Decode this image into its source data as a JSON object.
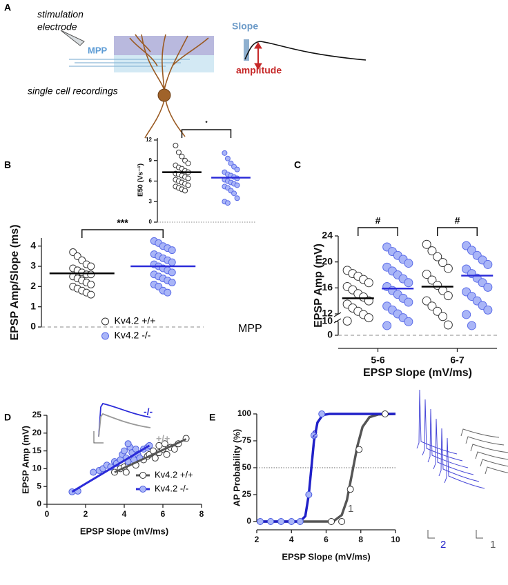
{
  "panels": [
    "A",
    "B",
    "C",
    "D",
    "E"
  ],
  "diagram": {
    "electrode": [
      "stimulation",
      "electrode"
    ],
    "pathway": "MPP",
    "recording": "single cell recordings",
    "slope": "Slope",
    "amplitude": "amplitude"
  },
  "chart_data": [
    {
      "type": "dot",
      "categories": [
        null
      ],
      "ylabel": "E50 (Vs⁻¹)",
      "ylim": [
        0,
        12.3
      ],
      "yticks": [
        0,
        3,
        6,
        9,
        12
      ],
      "zero_line": "dotted",
      "significance": [
        "*"
      ],
      "series": [
        {
          "color": "#ffffff",
          "edge": "#333333",
          "mean_color": "#000000",
          "values": [
            [
              11.2,
              10.2,
              9.6,
              9.0,
              8.6,
              8.3,
              8.0,
              7.8,
              7.5,
              7.3,
              7.1,
              7.0,
              6.8,
              6.6,
              6.4,
              6.2,
              6.0,
              5.8,
              5.6,
              5.4,
              5.2,
              5.0,
              4.8,
              4.6
            ]
          ],
          "means": [
            7.3
          ]
        },
        {
          "color": "#a9b5f7",
          "edge": "#5a6be8",
          "mean_color": "#2b2bd9",
          "values": [
            [
              10.1,
              9.3,
              8.6,
              8.1,
              7.7,
              7.3,
              7.0,
              6.8,
              6.6,
              6.4,
              6.2,
              6.0,
              5.8,
              5.6,
              5.4,
              5.2,
              5.0,
              4.6,
              4.2,
              3.5,
              3.0,
              2.8
            ]
          ],
          "means": [
            6.5
          ]
        }
      ]
    },
    {
      "type": "dot",
      "categories": [
        null
      ],
      "ylabel": "EPSP Amp/Slope (ms)",
      "ylim": [
        0,
        4.4
      ],
      "yticks": [
        0,
        1,
        2,
        3,
        4
      ],
      "zero_line": "dashed",
      "significance": [
        "***"
      ],
      "legend": "lower center",
      "annotation": "MPP",
      "series": [
        {
          "name": "Kv4.2 +/+",
          "color": "#ffffff",
          "edge": "#333333",
          "mean_color": "#000000",
          "values": [
            [
              3.7,
              3.5,
              3.3,
              3.1,
              3.0,
              2.9,
              2.8,
              2.7,
              2.6,
              2.6,
              2.5,
              2.4,
              2.3,
              2.2,
              2.1,
              2.0,
              1.9,
              1.8,
              1.7,
              1.6
            ]
          ],
          "means": [
            2.65
          ]
        },
        {
          "name": "Kv4.2 -/-",
          "color": "#a9b5f7",
          "edge": "#5a6be8",
          "mean_color": "#2b2bd9",
          "values": [
            [
              4.25,
              4.15,
              4.0,
              3.9,
              3.8,
              3.6,
              3.5,
              3.4,
              3.3,
              3.2,
              3.1,
              3.0,
              2.9,
              2.8,
              2.7,
              2.6,
              2.5,
              2.4,
              2.3,
              2.2,
              2.1,
              2.0,
              1.8,
              1.7
            ]
          ],
          "means": [
            3.0
          ]
        }
      ]
    },
    {
      "type": "dot",
      "categories": [
        "5-6",
        "6-7"
      ],
      "xlabel": "EPSP Slope (mV/ms)",
      "ylabel": "EPSP Amp (mV)",
      "ylim": [
        0,
        24
      ],
      "ybreak": [
        10,
        12
      ],
      "yticks": [
        0,
        10,
        12,
        16,
        20,
        24
      ],
      "zero_line": "dashed",
      "significance": [
        "#",
        "#"
      ],
      "series": [
        {
          "color": "#ffffff",
          "edge": "#333333",
          "mean_color": "#000000",
          "values": [
            [
              18.7,
              18.2,
              17.8,
              17.3,
              16.8,
              16.2,
              15.7,
              15.1,
              14.6,
              14.0,
              13.5,
              12.9,
              12.4,
              11.9,
              11.4,
              10.9
            ],
            [
              22.7,
              21.7,
              20.8,
              19.9,
              19.0,
              18.1,
              17.2,
              16.4,
              15.6,
              14.8,
              14.0,
              13.2,
              12.4,
              11.6,
              10.3
            ]
          ],
          "means": [
            14.4,
            16.2
          ]
        },
        {
          "color": "#a9b5f7",
          "edge": "#5a6be8",
          "mean_color": "#2b2bd9",
          "values": [
            [
              22.3,
              21.6,
              21.0,
              20.4,
              19.8,
              19.2,
              18.6,
              18.0,
              17.4,
              16.8,
              16.2,
              15.6,
              15.0,
              14.4,
              13.8,
              13.2,
              12.6,
              12.0,
              11.4,
              10.8,
              10.2
            ],
            [
              22.5,
              21.8,
              21.0,
              20.3,
              19.6,
              18.9,
              18.2,
              17.5,
              16.8,
              16.1,
              15.4,
              14.7,
              14.0,
              13.3,
              12.6,
              11.9,
              10.2
            ]
          ],
          "means": [
            15.9,
            17.9
          ]
        }
      ]
    },
    {
      "type": "scatter",
      "xlabel": "EPSP Slope (mV/ms)",
      "ylabel": "EPSP Amp (mV)",
      "xlim": [
        0,
        8
      ],
      "xticks": [
        0,
        2,
        4,
        6,
        8
      ],
      "ylim": [
        0,
        25
      ],
      "yticks": [
        0,
        5,
        10,
        15,
        20,
        25
      ],
      "legend": "lower right",
      "trace_labels": [
        "-/-",
        "+/+"
      ],
      "series": [
        {
          "name": "Kv4.2 +/+",
          "color": "#ffffff",
          "edge": "#333333",
          "line_color": "#555555",
          "x": [
            3.5,
            3.8,
            4.0,
            4.2,
            4.4,
            4.6,
            4.8,
            5.0,
            5.2,
            5.3,
            5.5,
            5.6,
            5.8,
            6.0,
            6.1,
            6.2,
            6.4,
            6.6,
            6.8,
            7.2,
            4.1,
            5.8
          ],
          "values": [
            9.0,
            10.0,
            10.5,
            11.5,
            12.0,
            11.0,
            13.0,
            12.5,
            13.5,
            14.0,
            15.0,
            13.0,
            14.5,
            15.5,
            17.0,
            14.0,
            16.0,
            15.5,
            17.0,
            18.5,
            9.0,
            16.5
          ],
          "fit_x": [
            3.5,
            7.2
          ],
          "fit_y": [
            9,
            18.3
          ]
        },
        {
          "name": "Kv4.2 -/-",
          "color": "#a9b5f7",
          "edge": "#4a5be0",
          "line_color": "#2b2bd9",
          "x": [
            1.3,
            1.6,
            2.4,
            2.7,
            2.9,
            3.1,
            3.3,
            3.5,
            3.6,
            3.8,
            3.9,
            4.0,
            4.1,
            4.2,
            4.3,
            4.4,
            4.5,
            4.6,
            4.7,
            4.8,
            5.0,
            5.2,
            5.3,
            4.2
          ],
          "values": [
            3.5,
            3.7,
            9.0,
            9.5,
            10.0,
            11.0,
            10.5,
            12.0,
            11.5,
            12.5,
            14.0,
            15.0,
            13.0,
            12.0,
            16.0,
            14.5,
            12.5,
            15.5,
            14.0,
            13.0,
            15.5,
            16.0,
            16.5,
            17.0
          ],
          "fit_x": [
            1.3,
            5.3
          ],
          "fit_y": [
            3.5,
            16.5
          ]
        }
      ]
    },
    {
      "type": "line",
      "xlabel": "EPSP Slope (mV/ms)",
      "ylabel": "AP Probability (%)",
      "xlim": [
        2,
        10
      ],
      "xticks": [
        2,
        4,
        6,
        8,
        10
      ],
      "ylim": [
        0,
        100
      ],
      "yticks": [
        0,
        25,
        50,
        75,
        100
      ],
      "hline": 50,
      "series": [
        {
          "name": "1",
          "color": "#ffffff",
          "edge": "#333333",
          "line_color": "#555555",
          "x": [
            6.3,
            6.9,
            7.4,
            7.9,
            9.4
          ],
          "values": [
            0,
            0,
            30,
            67,
            100
          ],
          "fit_x": [
            2,
            6.4,
            6.9,
            7.2,
            7.5,
            7.8,
            8.1,
            8.5,
            9,
            10
          ],
          "fit_y": [
            0,
            0,
            6,
            20,
            45,
            70,
            88,
            97,
            99.5,
            100
          ]
        },
        {
          "name": "2",
          "color": "#a9b5f7",
          "edge": "#4a5be0",
          "line_color": "#2020c8",
          "x": [
            2.2,
            2.8,
            3.4,
            4.0,
            4.5,
            5.0,
            5.3,
            5.75
          ],
          "values": [
            0,
            0,
            0,
            0,
            0,
            25,
            80,
            100
          ],
          "fit_x": [
            2,
            4.5,
            4.8,
            5.0,
            5.15,
            5.3,
            5.5,
            5.8,
            6.2,
            10
          ],
          "fit_y": [
            0,
            0,
            5,
            25,
            50,
            75,
            92,
            99,
            100,
            100
          ]
        }
      ]
    }
  ]
}
